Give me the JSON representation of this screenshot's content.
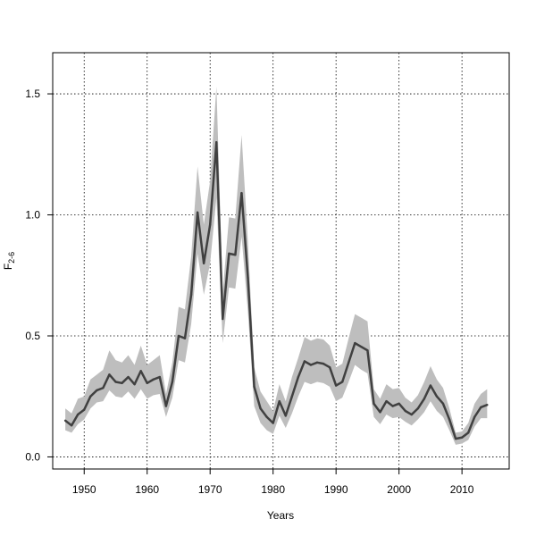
{
  "chart_data": {
    "type": "line",
    "title": "",
    "xlabel": "Years",
    "ylabel_main": "F",
    "ylabel_sub": "2-6",
    "xlim": [
      1945,
      2017.5
    ],
    "ylim": [
      -0.05,
      1.67
    ],
    "xticks": [
      1950,
      1960,
      1970,
      1980,
      1990,
      2000,
      2010
    ],
    "xtick_labels": [
      "1950",
      "1960",
      "1970",
      "1980",
      "1990",
      "2000",
      "2010"
    ],
    "yticks": [
      0.0,
      0.5,
      1.0,
      1.5
    ],
    "ytick_labels": [
      "0.0",
      "0.5",
      "1.0",
      "1.5"
    ],
    "grid": true,
    "legend": "none",
    "colors": {
      "line": "#404040",
      "band": "#bebebe",
      "grid": "#000000"
    },
    "series": [
      {
        "x": [
          1947,
          1948,
          1949,
          1950,
          1951,
          1952,
          1953,
          1954,
          1955,
          1956,
          1957,
          1958,
          1959,
          1960,
          1961,
          1962,
          1963,
          1964,
          1965,
          1966,
          1967,
          1968,
          1969,
          1970,
          1971,
          1972,
          1973,
          1974,
          1975,
          1976,
          1977,
          1978,
          1979,
          1980,
          1981,
          1982,
          1983,
          1984,
          1985,
          1986,
          1987,
          1988,
          1989,
          1990,
          1991,
          1992,
          1993,
          1994,
          1995,
          1996,
          1997,
          1998,
          1999,
          2000,
          2001,
          2002,
          2003,
          2004,
          2005,
          2006,
          2007,
          2008,
          2009,
          2010,
          2011,
          2012,
          2013,
          2014
        ],
        "y": [
          0.15,
          0.13,
          0.175,
          0.195,
          0.25,
          0.275,
          0.285,
          0.34,
          0.31,
          0.305,
          0.33,
          0.3,
          0.355,
          0.305,
          0.32,
          0.33,
          0.21,
          0.31,
          0.5,
          0.49,
          0.67,
          1.01,
          0.8,
          0.96,
          1.3,
          0.57,
          0.84,
          0.835,
          1.09,
          0.74,
          0.29,
          0.2,
          0.165,
          0.14,
          0.23,
          0.17,
          0.25,
          0.33,
          0.395,
          0.38,
          0.39,
          0.385,
          0.37,
          0.295,
          0.31,
          0.39,
          0.47,
          0.455,
          0.44,
          0.22,
          0.185,
          0.23,
          0.21,
          0.22,
          0.19,
          0.175,
          0.2,
          0.24,
          0.295,
          0.25,
          0.22,
          0.155,
          0.075,
          0.08,
          0.1,
          0.165,
          0.205,
          0.215
        ],
        "lower": [
          0.11,
          0.1,
          0.135,
          0.155,
          0.2,
          0.225,
          0.23,
          0.275,
          0.25,
          0.245,
          0.27,
          0.24,
          0.28,
          0.24,
          0.255,
          0.26,
          0.165,
          0.245,
          0.4,
          0.39,
          0.55,
          0.84,
          0.67,
          0.8,
          1.07,
          0.47,
          0.7,
          0.695,
          0.91,
          0.6,
          0.21,
          0.14,
          0.11,
          0.095,
          0.17,
          0.12,
          0.18,
          0.25,
          0.31,
          0.3,
          0.31,
          0.305,
          0.29,
          0.23,
          0.245,
          0.31,
          0.38,
          0.36,
          0.345,
          0.165,
          0.135,
          0.175,
          0.16,
          0.165,
          0.145,
          0.13,
          0.155,
          0.185,
          0.23,
          0.19,
          0.165,
          0.11,
          0.05,
          0.055,
          0.07,
          0.125,
          0.16,
          0.16
        ],
        "upper": [
          0.2,
          0.18,
          0.24,
          0.25,
          0.32,
          0.34,
          0.36,
          0.44,
          0.4,
          0.39,
          0.42,
          0.38,
          0.46,
          0.38,
          0.4,
          0.42,
          0.26,
          0.39,
          0.62,
          0.61,
          0.83,
          1.2,
          0.96,
          1.14,
          1.53,
          0.68,
          0.99,
          0.985,
          1.33,
          0.89,
          0.37,
          0.27,
          0.23,
          0.19,
          0.3,
          0.23,
          0.33,
          0.41,
          0.495,
          0.48,
          0.49,
          0.485,
          0.46,
          0.37,
          0.385,
          0.49,
          0.59,
          0.575,
          0.56,
          0.28,
          0.24,
          0.3,
          0.28,
          0.285,
          0.245,
          0.225,
          0.255,
          0.31,
          0.375,
          0.32,
          0.285,
          0.2,
          0.1,
          0.105,
          0.14,
          0.22,
          0.26,
          0.28
        ]
      }
    ]
  }
}
